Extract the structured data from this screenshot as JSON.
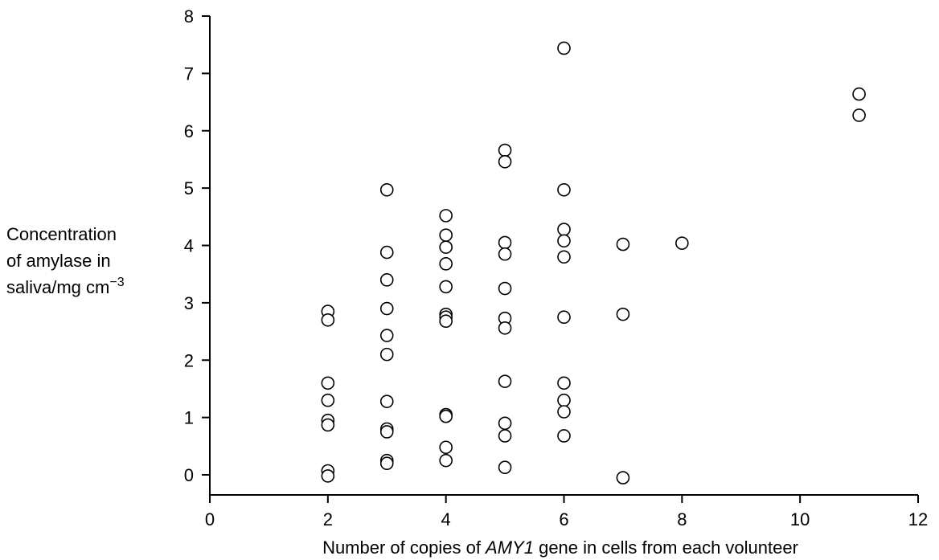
{
  "chart_data": {
    "type": "scatter",
    "xlabel": {
      "before": "Number of copies of ",
      "italic": "AMY1",
      "after": " gene in cells from each volunteer"
    },
    "ylabel": {
      "line1": "Concentration",
      "line2": "of amylase in",
      "line3_main": "saliva/mg cm",
      "line3_sup": "−3"
    },
    "xlim": [
      0,
      12
    ],
    "ylim": [
      -0.4,
      8
    ],
    "xticks": [
      0,
      2,
      4,
      6,
      8,
      10,
      12
    ],
    "yticks": [
      0,
      1,
      2,
      3,
      4,
      5,
      6,
      7,
      8
    ],
    "grid": false,
    "marker": "open-circle",
    "points": [
      {
        "x": 2,
        "y": 2.85
      },
      {
        "x": 2,
        "y": 2.7
      },
      {
        "x": 2,
        "y": 1.6
      },
      {
        "x": 2,
        "y": 1.3
      },
      {
        "x": 2,
        "y": 0.95
      },
      {
        "x": 2,
        "y": 0.87
      },
      {
        "x": 2,
        "y": 0.07
      },
      {
        "x": 2,
        "y": -0.02
      },
      {
        "x": 3,
        "y": 4.97
      },
      {
        "x": 3,
        "y": 3.88
      },
      {
        "x": 3,
        "y": 3.4
      },
      {
        "x": 3,
        "y": 2.9
      },
      {
        "x": 3,
        "y": 2.43
      },
      {
        "x": 3,
        "y": 2.1
      },
      {
        "x": 3,
        "y": 1.28
      },
      {
        "x": 3,
        "y": 0.8
      },
      {
        "x": 3,
        "y": 0.75
      },
      {
        "x": 3,
        "y": 0.25
      },
      {
        "x": 3,
        "y": 0.2
      },
      {
        "x": 4,
        "y": 4.52
      },
      {
        "x": 4,
        "y": 4.18
      },
      {
        "x": 4,
        "y": 3.97
      },
      {
        "x": 4,
        "y": 3.68
      },
      {
        "x": 4,
        "y": 3.28
      },
      {
        "x": 4,
        "y": 2.8
      },
      {
        "x": 4,
        "y": 2.75
      },
      {
        "x": 4,
        "y": 2.68
      },
      {
        "x": 4,
        "y": 1.05
      },
      {
        "x": 4,
        "y": 1.02
      },
      {
        "x": 4,
        "y": 0.48
      },
      {
        "x": 4,
        "y": 0.25
      },
      {
        "x": 5,
        "y": 5.66
      },
      {
        "x": 5,
        "y": 5.46
      },
      {
        "x": 5,
        "y": 4.05
      },
      {
        "x": 5,
        "y": 3.85
      },
      {
        "x": 5,
        "y": 3.25
      },
      {
        "x": 5,
        "y": 2.73
      },
      {
        "x": 5,
        "y": 2.56
      },
      {
        "x": 5,
        "y": 1.63
      },
      {
        "x": 5,
        "y": 0.9
      },
      {
        "x": 5,
        "y": 0.68
      },
      {
        "x": 5,
        "y": 0.13
      },
      {
        "x": 6,
        "y": 7.44
      },
      {
        "x": 6,
        "y": 4.97
      },
      {
        "x": 6,
        "y": 4.28
      },
      {
        "x": 6,
        "y": 4.08
      },
      {
        "x": 6,
        "y": 3.8
      },
      {
        "x": 6,
        "y": 2.75
      },
      {
        "x": 6,
        "y": 1.6
      },
      {
        "x": 6,
        "y": 1.3
      },
      {
        "x": 6,
        "y": 1.1
      },
      {
        "x": 6,
        "y": 0.68
      },
      {
        "x": 7,
        "y": 4.02
      },
      {
        "x": 7,
        "y": 2.8
      },
      {
        "x": 7,
        "y": -0.05
      },
      {
        "x": 8,
        "y": 4.04
      },
      {
        "x": 11,
        "y": 6.64
      },
      {
        "x": 11,
        "y": 6.27
      }
    ]
  }
}
